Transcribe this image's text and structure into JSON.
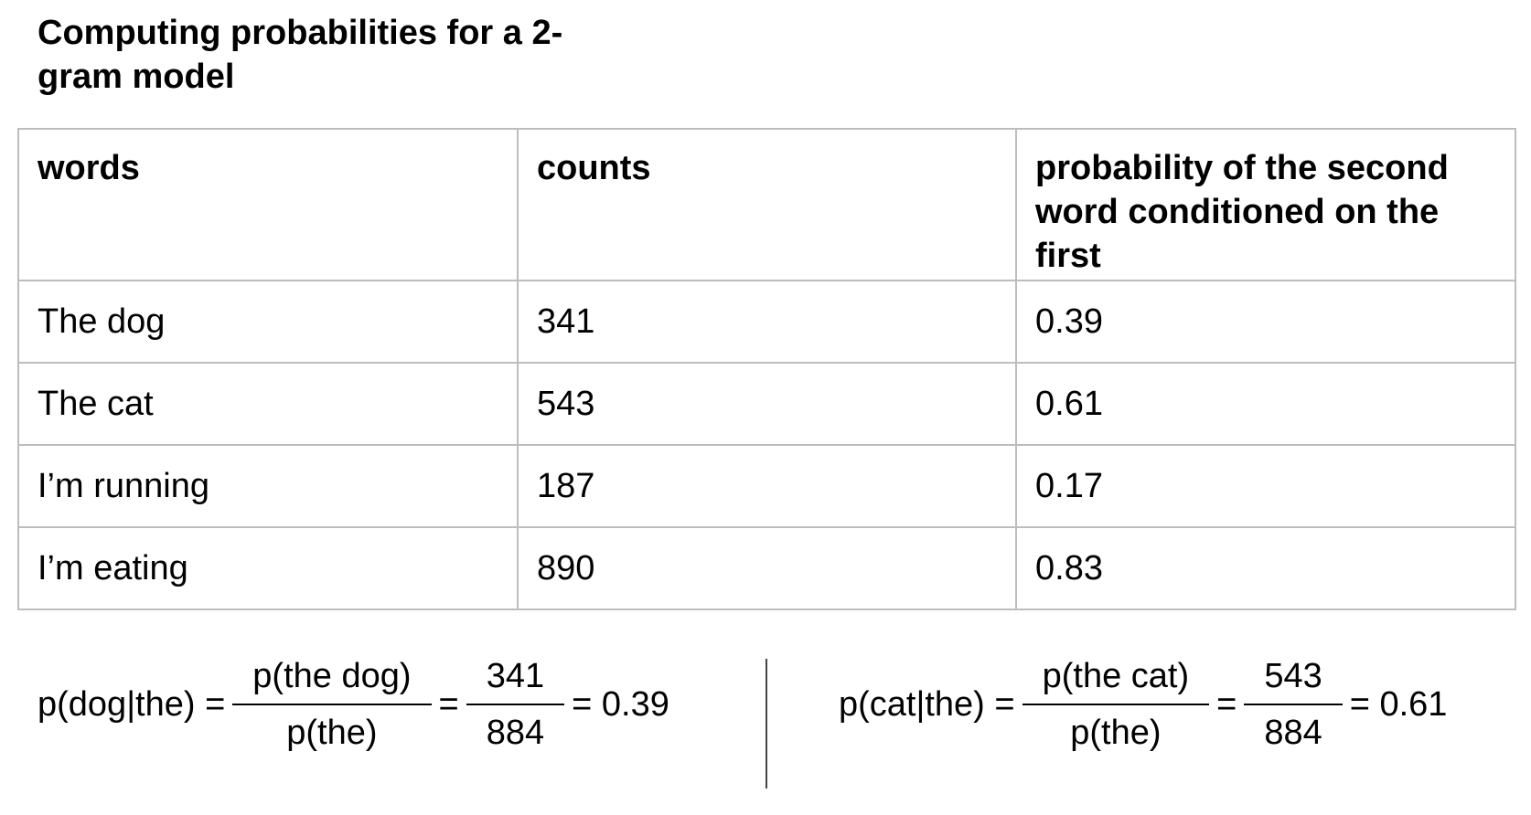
{
  "header": {
    "title": "Computing probabilities for a 2-gram model"
  },
  "table": {
    "columns": [
      "words",
      "counts",
      "probability of the second word conditioned on the first"
    ],
    "rows": [
      [
        "The dog",
        "341",
        "0.39"
      ],
      [
        "The cat",
        "543",
        "0.61"
      ],
      [
        "I’m running",
        "187",
        "0.17"
      ],
      [
        "I’m eating",
        "890",
        "0.83"
      ]
    ]
  },
  "formulas": [
    {
      "lhs": "p(dog|the) =",
      "num1": "p(the dog)",
      "den1": "p(the)",
      "eq": "=",
      "num2": "341",
      "den2": "884",
      "result": "= 0.39"
    },
    {
      "lhs": "p(cat|the) =",
      "num1": "p(the cat)",
      "den1": "p(the)",
      "eq": "=",
      "num2": "543",
      "den2": "884",
      "result": "= 0.61"
    }
  ]
}
